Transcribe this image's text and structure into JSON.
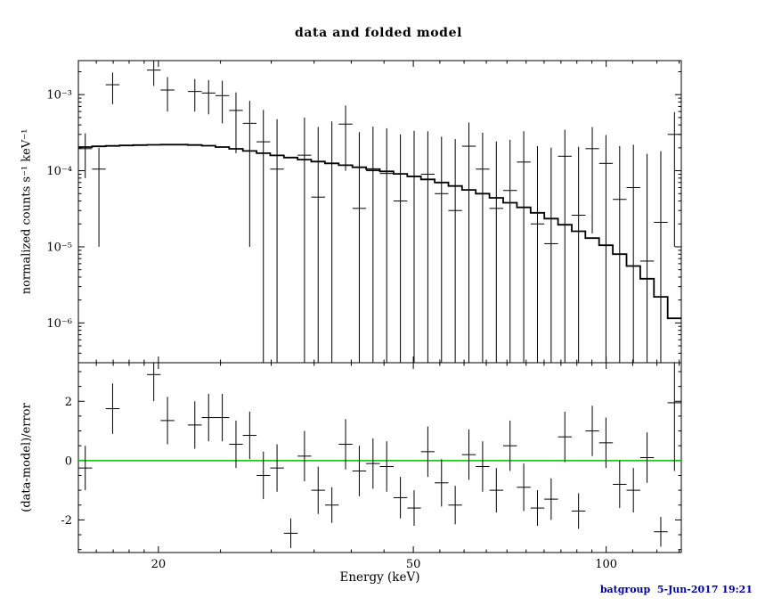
{
  "title": "data and folded model",
  "xlabel": "Energy (keV)",
  "footer": "batgroup  5-Jun-2017 19:21",
  "colors": {
    "background": "#ffffff",
    "frame": "#000000",
    "data": "#000000",
    "model": "#000000",
    "zero_line": "#00c000",
    "footer_text": "#0000a0"
  },
  "chart_data": {
    "type": "line",
    "description": "Spectral fit plot (XSPEC style): top panel shows spectrum data points with error bars and folded model histogram on log-log axes; bottom panel shows fit residuals (data-model)/error with a green zero line.",
    "x_axis": {
      "label": "Energy (keV)",
      "scale": "log",
      "min": 15.0,
      "max": 131.0,
      "major_ticks": [
        20,
        50,
        100
      ],
      "minor_ticks": [
        16,
        17,
        18,
        19,
        25,
        30,
        35,
        40,
        45,
        55,
        60,
        65,
        70,
        75,
        80,
        85,
        90,
        95,
        110,
        120,
        130
      ]
    },
    "top_panel": {
      "ylabel": "normalized counts s⁻¹ keV⁻¹",
      "scale": "log",
      "ymin": 3e-07,
      "ymax": 0.0028,
      "major_ticks": [
        {
          "value": 0.001,
          "label": "10⁻³"
        },
        {
          "value": 0.0001,
          "label": "10⁻⁴"
        },
        {
          "value": 1e-05,
          "label": "10⁻⁵"
        },
        {
          "value": 1e-06,
          "label": "10⁻⁶"
        }
      ],
      "bin_edges": [
        15.0,
        15.76,
        16.55,
        17.39,
        18.27,
        19.19,
        20.16,
        21.18,
        22.24,
        23.37,
        24.55,
        25.79,
        27.09,
        28.46,
        29.89,
        31.4,
        32.99,
        34.65,
        36.4,
        38.24,
        40.17,
        42.2,
        44.33,
        46.57,
        48.92,
        51.39,
        53.99,
        56.71,
        59.57,
        62.58,
        65.74,
        69.06,
        72.55,
        76.21,
        80.06,
        84.1,
        88.35,
        92.81,
        97.49,
        102.42,
        107.59,
        113.02,
        118.73,
        124.72,
        131.0
      ],
      "model": [
        0.000205,
        0.000209,
        0.000212,
        0.000215,
        0.000217,
        0.000219,
        0.00022,
        0.00022,
        0.000218,
        0.000213,
        0.000205,
        0.000194,
        0.000182,
        0.00017,
        0.000159,
        0.000149,
        0.00014,
        0.000132,
        0.000125,
        0.000118,
        0.000111,
        0.000105,
        9.8e-05,
        9.1e-05,
        8.4e-05,
        7.7e-05,
        7e-05,
        6.3e-05,
        5.6e-05,
        5e-05,
        4.4e-05,
        3.8e-05,
        3.3e-05,
        2.8e-05,
        2.35e-05,
        1.95e-05,
        1.6e-05,
        1.3e-05,
        1.05e-05,
        8e-06,
        5.6e-06,
        3.8e-06,
        2.2e-06,
        1.15e-06
      ],
      "data": [
        [
          0,
          0.000195,
          0.000115
        ],
        [
          1,
          0.000105,
          9.5e-05
        ],
        [
          2,
          0.00135,
          0.0006
        ],
        [
          5,
          0.0021,
          0.0008
        ],
        [
          6,
          0.00115,
          0.00055
        ],
        [
          8,
          0.0011,
          0.0005
        ],
        [
          9,
          0.00105,
          0.0005
        ],
        [
          10,
          0.00097,
          0.00055
        ],
        [
          11,
          0.00062,
          0.00045
        ],
        [
          12,
          0.00042,
          0.00041
        ],
        [
          13,
          0.00024,
          0.00039
        ],
        [
          14,
          0.000105,
          0.00037
        ],
        [
          16,
          0.00016,
          0.00034
        ],
        [
          17,
          4.5e-05,
          0.00033
        ],
        [
          18,
          0.000125,
          0.00032
        ],
        [
          19,
          0.00041,
          0.00031
        ],
        [
          20,
          3.2e-05,
          0.00029
        ],
        [
          21,
          0.0001,
          0.00028
        ],
        [
          22,
          9.2e-05,
          0.00027
        ],
        [
          23,
          4e-05,
          0.00026
        ],
        [
          24,
          8.5e-05,
          0.00025
        ],
        [
          25,
          9e-05,
          0.00024
        ],
        [
          26,
          5e-05,
          0.00023
        ],
        [
          27,
          3e-05,
          0.00023
        ],
        [
          28,
          0.00021,
          0.00022
        ],
        [
          29,
          0.000105,
          0.00021
        ],
        [
          30,
          3.2e-05,
          0.00021
        ],
        [
          31,
          5.5e-05,
          0.0002
        ],
        [
          32,
          0.00013,
          0.0002
        ],
        [
          33,
          2e-05,
          0.00019
        ],
        [
          34,
          1.1e-05,
          0.00019
        ],
        [
          35,
          0.000155,
          0.00019
        ],
        [
          36,
          2.6e-05,
          0.00018
        ],
        [
          37,
          0.000195,
          0.00018
        ],
        [
          38,
          0.000125,
          0.00017
        ],
        [
          39,
          4.2e-05,
          0.00017
        ],
        [
          40,
          6e-05,
          0.00016
        ],
        [
          41,
          6.5e-06,
          0.00016
        ],
        [
          42,
          2.1e-05,
          0.00016
        ],
        [
          43,
          0.0003,
          0.00029
        ]
      ]
    },
    "bottom_panel": {
      "ylabel": "(data-model)/error",
      "scale": "linear",
      "ymin": -3.1,
      "ymax": 3.3,
      "major_ticks": [
        -2,
        0,
        2
      ],
      "zero_line": 0,
      "data": [
        [
          0,
          -0.25,
          0.75
        ],
        [
          2,
          1.75,
          0.85
        ],
        [
          5,
          2.9,
          0.9
        ],
        [
          6,
          1.35,
          0.8
        ],
        [
          8,
          1.2,
          0.8
        ],
        [
          9,
          1.45,
          0.8
        ],
        [
          10,
          1.45,
          0.8
        ],
        [
          11,
          0.55,
          0.8
        ],
        [
          12,
          0.85,
          0.8
        ],
        [
          13,
          -0.5,
          0.8
        ],
        [
          14,
          -0.25,
          0.8
        ],
        [
          15,
          -2.45,
          0.5
        ],
        [
          16,
          0.15,
          0.85
        ],
        [
          17,
          -1.0,
          0.8
        ],
        [
          18,
          -1.5,
          0.6
        ],
        [
          19,
          0.55,
          0.85
        ],
        [
          20,
          -0.35,
          0.85
        ],
        [
          21,
          -0.1,
          0.85
        ],
        [
          22,
          -0.2,
          0.85
        ],
        [
          23,
          -1.25,
          0.7
        ],
        [
          24,
          -1.6,
          0.6
        ],
        [
          25,
          0.3,
          0.85
        ],
        [
          26,
          -0.75,
          0.8
        ],
        [
          27,
          -1.5,
          0.65
        ],
        [
          28,
          0.2,
          0.85
        ],
        [
          29,
          -0.2,
          0.85
        ],
        [
          30,
          -1.0,
          0.75
        ],
        [
          31,
          0.5,
          0.85
        ],
        [
          32,
          -0.9,
          0.8
        ],
        [
          33,
          -1.6,
          0.6
        ],
        [
          34,
          -1.3,
          0.7
        ],
        [
          35,
          0.8,
          0.85
        ],
        [
          36,
          -1.7,
          0.6
        ],
        [
          37,
          1.0,
          0.85
        ],
        [
          38,
          0.6,
          0.85
        ],
        [
          39,
          -0.8,
          0.8
        ],
        [
          40,
          -1.0,
          0.75
        ],
        [
          41,
          0.1,
          0.85
        ],
        [
          42,
          -2.4,
          0.5
        ],
        [
          43,
          1.95,
          2.3
        ]
      ]
    }
  }
}
